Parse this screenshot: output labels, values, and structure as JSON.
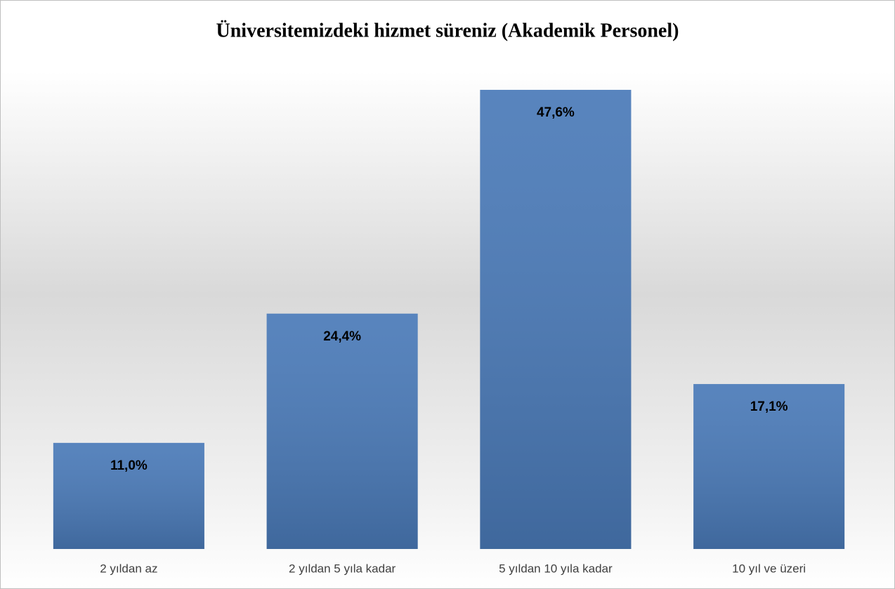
{
  "chart_data": {
    "type": "bar",
    "title": "Üniversitemizdeki hizmet süreniz (Akademik Personel)",
    "categories": [
      "2 yıldan az",
      "2 yıldan 5 yıla kadar",
      "5 yıldan 10 yıla kadar",
      "10 yıl ve üzeri"
    ],
    "values": [
      11.0,
      24.4,
      47.6,
      17.1
    ],
    "value_labels": [
      "11,0%",
      "24,4%",
      "47,6%",
      "17,1%"
    ],
    "color": "#4a7ab8",
    "ylim": [
      0,
      50
    ]
  }
}
